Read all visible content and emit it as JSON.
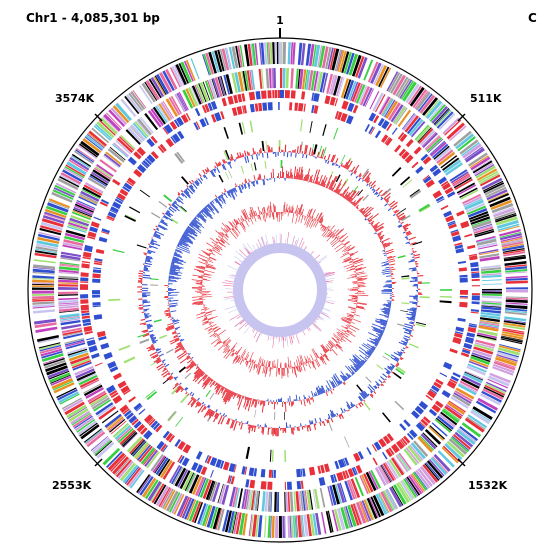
{
  "title": "Chr1 - 4,085,301 bp",
  "title_cut": "C",
  "origin_label": "1",
  "position_labels": {
    "top_left": "3574K",
    "top_right": "511K",
    "bottom_right": "1532K",
    "bottom_left": "2553K"
  },
  "colors": {
    "outline": "#000000",
    "red": "#e8303a",
    "blue": "#2f4fd0",
    "pink": "#e86aa0",
    "magenta": "#c040c0",
    "purple": "#7a4fc8",
    "lavender": "#c8c4f0",
    "green": "#38d040",
    "light_green": "#a0e070",
    "gray": "#a0a0a0",
    "cyan": "#60c8e0",
    "orange": "#e89020"
  }
}
